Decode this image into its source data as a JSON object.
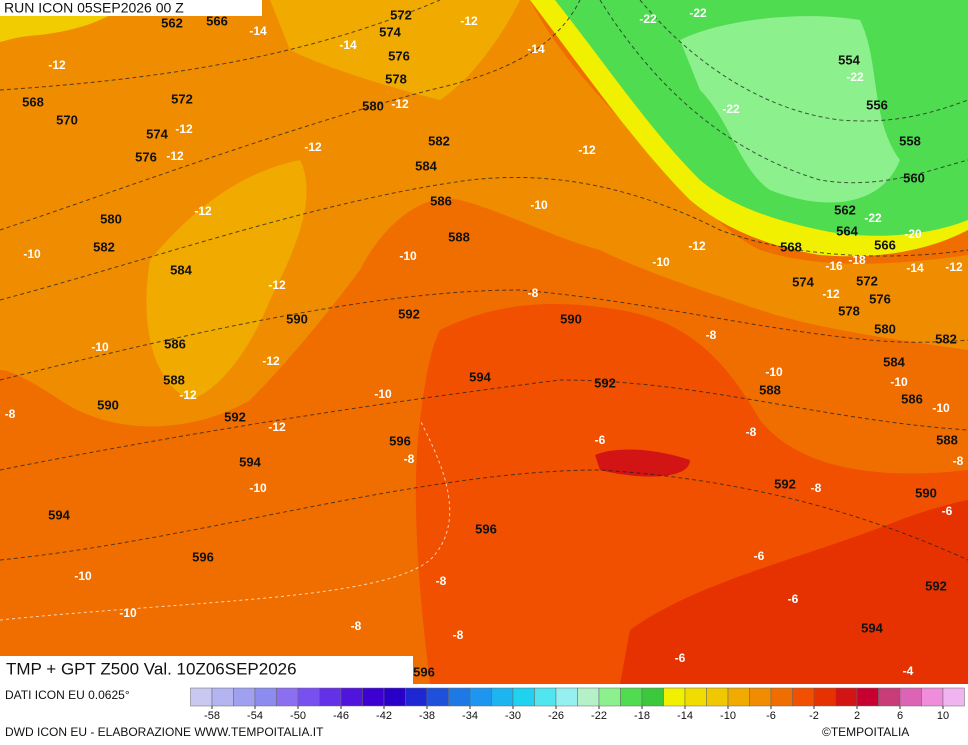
{
  "header": {
    "run": "RUN ICON 05SEP2026 00 Z"
  },
  "footer": {
    "title": "TMP + GPT Z500 Val. 10Z06SEP2026",
    "data_source": "DATI ICON EU 0.0625°",
    "credit": "DWD ICON EU - ELABORAZIONE WWW.TEMPOITALIA.IT",
    "copyright": "©TEMPOITALIA"
  },
  "colorbar": {
    "colors": [
      "#c8c8f0",
      "#b4b4f0",
      "#a0a0f0",
      "#8c8cf0",
      "#8c6ef0",
      "#7850f0",
      "#6432e6",
      "#5014dc",
      "#3c00d2",
      "#2800c8",
      "#1e28d2",
      "#1e50dc",
      "#1e78e6",
      "#1e96f0",
      "#1eb4f0",
      "#1ed2f0",
      "#50e6f0",
      "#96f0f0",
      "#b4f0c8",
      "#8cf08c",
      "#50dc50",
      "#3cc83c",
      "#f0f000",
      "#f0dc00",
      "#f0c800",
      "#f0aa00",
      "#f08c00",
      "#f06e00",
      "#f05000",
      "#e63200",
      "#d21414",
      "#c80032",
      "#c83c78",
      "#dc64b4",
      "#f08cdc",
      "#f0b4f0"
    ],
    "ticks": [
      -58,
      -54,
      -50,
      -46,
      -42,
      -38,
      -34,
      -30,
      -26,
      -22,
      -18,
      -14,
      -10,
      -6,
      -2,
      2,
      6,
      10
    ]
  },
  "contour_labels": {
    "geopotential": [
      562,
      566,
      572,
      574,
      576,
      578,
      568,
      570,
      572,
      574,
      576,
      580,
      582,
      584,
      586,
      588,
      580,
      582,
      584,
      590,
      592,
      590,
      586,
      588,
      590,
      592,
      594,
      592,
      596,
      594,
      594,
      596,
      596,
      596,
      554,
      556,
      558,
      560,
      562,
      564,
      566,
      568,
      574,
      572,
      576,
      578,
      580,
      582,
      584,
      588,
      586,
      588,
      592,
      590,
      592,
      594
    ],
    "temperature": [
      -14,
      -12,
      -14,
      -14,
      -22,
      -22,
      -22,
      -22,
      -12,
      -12,
      -12,
      -12,
      -12,
      -12,
      -12,
      -10,
      -10,
      -10,
      -12,
      -10,
      -12,
      -8,
      -16,
      -18,
      -14,
      -12,
      -20,
      -22,
      -12,
      -10,
      -12,
      -8,
      -12,
      -10,
      -10,
      -10,
      -10,
      -8,
      -12,
      -6,
      -8,
      -8,
      -10,
      -8,
      -8,
      -6,
      -6,
      -10,
      -8,
      -10,
      -6,
      -8,
      -8,
      -6,
      -4
    ]
  }
}
